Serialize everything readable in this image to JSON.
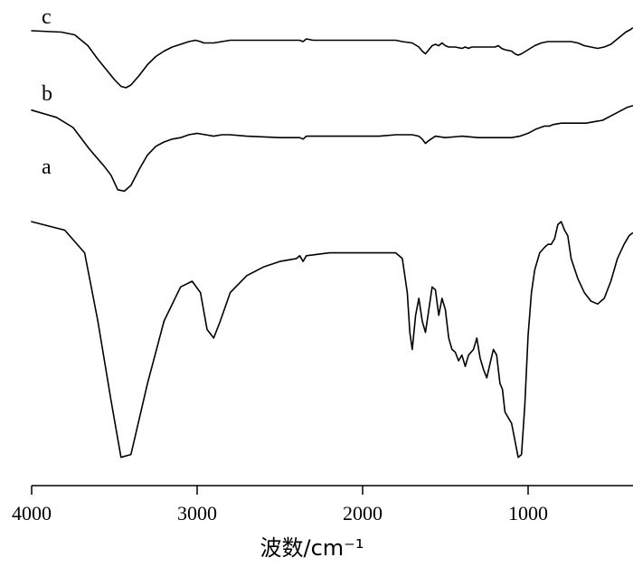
{
  "chart_data": {
    "type": "line",
    "xlabel": "波数/cm⁻¹",
    "ylabel": "",
    "xlim": [
      4000,
      370
    ],
    "x_reversed": true,
    "grid": false,
    "legend": "none",
    "ticks": [
      4000,
      3000,
      2000,
      1000
    ],
    "tick_labels": [
      "4000",
      "3000",
      "2000",
      "1000"
    ],
    "ylim": [
      0,
      100
    ],
    "series": [
      {
        "name": "a",
        "points": [
          [
            4000,
            85
          ],
          [
            3800,
            82
          ],
          [
            3680,
            74
          ],
          [
            3600,
            50
          ],
          [
            3520,
            22
          ],
          [
            3460,
            2
          ],
          [
            3400,
            3
          ],
          [
            3300,
            28
          ],
          [
            3200,
            50
          ],
          [
            3100,
            62
          ],
          [
            3030,
            64
          ],
          [
            2980,
            60
          ],
          [
            2940,
            47
          ],
          [
            2900,
            44
          ],
          [
            2860,
            50
          ],
          [
            2800,
            60
          ],
          [
            2700,
            66
          ],
          [
            2600,
            69
          ],
          [
            2500,
            71
          ],
          [
            2400,
            72
          ],
          [
            2380,
            73
          ],
          [
            2360,
            71
          ],
          [
            2340,
            73
          ],
          [
            2200,
            74
          ],
          [
            2000,
            74
          ],
          [
            1800,
            74
          ],
          [
            1760,
            72
          ],
          [
            1730,
            60
          ],
          [
            1715,
            46
          ],
          [
            1700,
            40
          ],
          [
            1680,
            52
          ],
          [
            1660,
            58
          ],
          [
            1640,
            50
          ],
          [
            1620,
            46
          ],
          [
            1600,
            54
          ],
          [
            1580,
            62
          ],
          [
            1560,
            61
          ],
          [
            1540,
            52
          ],
          [
            1520,
            58
          ],
          [
            1500,
            54
          ],
          [
            1480,
            44
          ],
          [
            1460,
            40
          ],
          [
            1440,
            39
          ],
          [
            1420,
            36
          ],
          [
            1400,
            38
          ],
          [
            1380,
            34
          ],
          [
            1360,
            38
          ],
          [
            1330,
            40
          ],
          [
            1310,
            44
          ],
          [
            1290,
            37
          ],
          [
            1270,
            33
          ],
          [
            1250,
            30
          ],
          [
            1230,
            35
          ],
          [
            1210,
            40
          ],
          [
            1190,
            38
          ],
          [
            1170,
            28
          ],
          [
            1155,
            26
          ],
          [
            1140,
            18
          ],
          [
            1120,
            16
          ],
          [
            1100,
            14
          ],
          [
            1080,
            8
          ],
          [
            1060,
            2
          ],
          [
            1040,
            3
          ],
          [
            1020,
            20
          ],
          [
            1000,
            45
          ],
          [
            980,
            60
          ],
          [
            960,
            68
          ],
          [
            930,
            74
          ],
          [
            900,
            76
          ],
          [
            880,
            77
          ],
          [
            860,
            77
          ],
          [
            840,
            79
          ],
          [
            820,
            84
          ],
          [
            800,
            85
          ],
          [
            780,
            82
          ],
          [
            760,
            80
          ],
          [
            740,
            72
          ],
          [
            700,
            65
          ],
          [
            660,
            60
          ],
          [
            620,
            57
          ],
          [
            580,
            56
          ],
          [
            540,
            58
          ],
          [
            500,
            64
          ],
          [
            460,
            72
          ],
          [
            420,
            77
          ],
          [
            390,
            80
          ],
          [
            370,
            81
          ]
        ]
      },
      {
        "name": "b",
        "points": [
          [
            4000,
            97
          ],
          [
            3850,
            92
          ],
          [
            3750,
            85
          ],
          [
            3650,
            70
          ],
          [
            3560,
            58
          ],
          [
            3520,
            52
          ],
          [
            3480,
            42
          ],
          [
            3440,
            41
          ],
          [
            3400,
            45
          ],
          [
            3350,
            56
          ],
          [
            3300,
            66
          ],
          [
            3250,
            72
          ],
          [
            3200,
            75
          ],
          [
            3150,
            77
          ],
          [
            3100,
            78
          ],
          [
            3050,
            80
          ],
          [
            3000,
            81
          ],
          [
            2950,
            80
          ],
          [
            2900,
            79
          ],
          [
            2850,
            80
          ],
          [
            2800,
            80
          ],
          [
            2700,
            79
          ],
          [
            2500,
            78
          ],
          [
            2380,
            78
          ],
          [
            2360,
            77
          ],
          [
            2340,
            79
          ],
          [
            2300,
            79
          ],
          [
            2100,
            79
          ],
          [
            1900,
            79
          ],
          [
            1800,
            80
          ],
          [
            1700,
            80
          ],
          [
            1660,
            79
          ],
          [
            1640,
            77
          ],
          [
            1620,
            74
          ],
          [
            1600,
            76
          ],
          [
            1560,
            79
          ],
          [
            1500,
            78
          ],
          [
            1400,
            79
          ],
          [
            1300,
            78
          ],
          [
            1200,
            78
          ],
          [
            1100,
            78
          ],
          [
            1050,
            79
          ],
          [
            1000,
            81
          ],
          [
            950,
            84
          ],
          [
            900,
            86
          ],
          [
            870,
            86
          ],
          [
            850,
            87
          ],
          [
            800,
            88
          ],
          [
            750,
            88
          ],
          [
            700,
            88
          ],
          [
            650,
            88
          ],
          [
            600,
            89
          ],
          [
            550,
            90
          ],
          [
            500,
            93
          ],
          [
            450,
            96
          ],
          [
            400,
            99
          ],
          [
            370,
            100
          ]
        ]
      },
      {
        "name": "c",
        "points": [
          [
            4000,
            100
          ],
          [
            3820,
            99
          ],
          [
            3740,
            97
          ],
          [
            3660,
            89
          ],
          [
            3600,
            79
          ],
          [
            3540,
            70
          ],
          [
            3500,
            64
          ],
          [
            3460,
            59
          ],
          [
            3430,
            58
          ],
          [
            3400,
            60
          ],
          [
            3350,
            67
          ],
          [
            3300,
            75
          ],
          [
            3250,
            81
          ],
          [
            3200,
            85
          ],
          [
            3150,
            88
          ],
          [
            3100,
            90
          ],
          [
            3050,
            92
          ],
          [
            3010,
            93
          ],
          [
            2980,
            92
          ],
          [
            2960,
            91
          ],
          [
            2900,
            91
          ],
          [
            2850,
            92
          ],
          [
            2800,
            93
          ],
          [
            2700,
            93
          ],
          [
            2500,
            93
          ],
          [
            2380,
            93
          ],
          [
            2360,
            92
          ],
          [
            2340,
            94
          ],
          [
            2300,
            93
          ],
          [
            2100,
            93
          ],
          [
            1900,
            93
          ],
          [
            1800,
            93
          ],
          [
            1760,
            92
          ],
          [
            1700,
            91
          ],
          [
            1660,
            88
          ],
          [
            1640,
            85
          ],
          [
            1620,
            83
          ],
          [
            1600,
            86
          ],
          [
            1580,
            89
          ],
          [
            1560,
            90
          ],
          [
            1540,
            89
          ],
          [
            1520,
            91
          ],
          [
            1500,
            89
          ],
          [
            1480,
            88
          ],
          [
            1440,
            88
          ],
          [
            1400,
            87
          ],
          [
            1380,
            88
          ],
          [
            1360,
            87
          ],
          [
            1340,
            88
          ],
          [
            1300,
            88
          ],
          [
            1200,
            88
          ],
          [
            1180,
            89
          ],
          [
            1160,
            87
          ],
          [
            1140,
            86
          ],
          [
            1100,
            85
          ],
          [
            1080,
            83
          ],
          [
            1060,
            82
          ],
          [
            1040,
            83
          ],
          [
            1000,
            86
          ],
          [
            960,
            89
          ],
          [
            920,
            91
          ],
          [
            880,
            92
          ],
          [
            840,
            92
          ],
          [
            800,
            92
          ],
          [
            740,
            92
          ],
          [
            700,
            91
          ],
          [
            660,
            89
          ],
          [
            620,
            88
          ],
          [
            580,
            87
          ],
          [
            540,
            88
          ],
          [
            500,
            90
          ],
          [
            470,
            93
          ],
          [
            440,
            96
          ],
          [
            410,
            99
          ],
          [
            380,
            101
          ],
          [
            370,
            102
          ]
        ]
      }
    ]
  }
}
